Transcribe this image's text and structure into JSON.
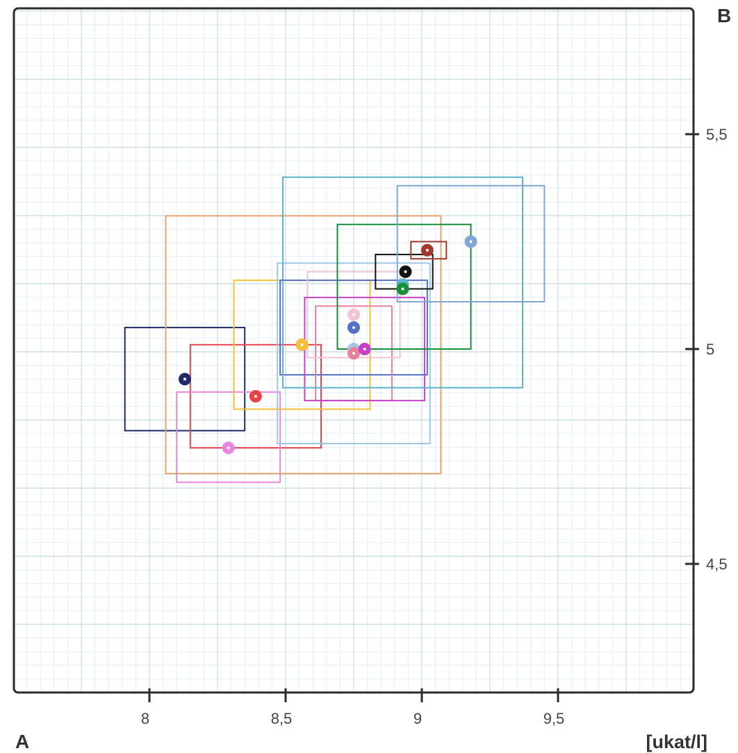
{
  "chart_data": {
    "type": "scatter",
    "title": "",
    "corner_label_x": "A",
    "corner_label_y": "B",
    "xlabel": "[ukat/l]",
    "ylabel": "",
    "xlim": [
      7.5,
      10.0
    ],
    "ylim": [
      4.0,
      5.75
    ],
    "grid": true,
    "x_ticks": [
      {
        "value": 8.0,
        "label": "8"
      },
      {
        "value": 8.5,
        "label": "8,5"
      },
      {
        "value": 9.0,
        "label": "9"
      },
      {
        "value": 9.5,
        "label": "9,5"
      }
    ],
    "y_ticks": [
      {
        "value": 4.5,
        "label": "4,5"
      },
      {
        "value": 5.0,
        "label": "5"
      },
      {
        "value": 5.5,
        "label": "5,5"
      }
    ],
    "series": [
      {
        "color": "#1f2a6b",
        "x": 8.13,
        "y": 4.93,
        "x_range": [
          7.91,
          8.35
        ],
        "y_range": [
          4.81,
          5.05
        ]
      },
      {
        "color": "#e8a36c",
        "x": 8.56,
        "y": 5.01,
        "x_range": [
          8.06,
          9.07
        ],
        "y_range": [
          4.71,
          5.31
        ]
      },
      {
        "color": "#e8424a",
        "x": 8.39,
        "y": 4.89,
        "x_range": [
          8.15,
          8.63
        ],
        "y_range": [
          4.77,
          5.01
        ]
      },
      {
        "color": "#e887dd",
        "x": 8.29,
        "y": 4.77,
        "x_range": [
          8.1,
          8.48
        ],
        "y_range": [
          4.69,
          4.9
        ]
      },
      {
        "color": "#f3c03a",
        "x": 8.56,
        "y": 5.01,
        "x_range": [
          8.31,
          8.81
        ],
        "y_range": [
          4.86,
          5.16
        ]
      },
      {
        "color": "#9ec7e3",
        "x": 8.75,
        "y": 5.0,
        "x_range": [
          8.47,
          9.03
        ],
        "y_range": [
          4.78,
          5.2
        ]
      },
      {
        "color": "#5470c6",
        "x": 8.75,
        "y": 5.05,
        "x_range": [
          8.48,
          9.02
        ],
        "y_range": [
          4.94,
          5.16
        ]
      },
      {
        "color": "#e8819a",
        "x": 8.75,
        "y": 4.99,
        "x_range": [
          8.61,
          8.89
        ],
        "y_range": [
          4.88,
          5.1
        ]
      },
      {
        "color": "#f2c4d6",
        "x": 8.75,
        "y": 5.08,
        "x_range": [
          8.58,
          8.92
        ],
        "y_range": [
          4.98,
          5.18
        ]
      },
      {
        "color": "#c840c8",
        "x": 8.79,
        "y": 5.0,
        "x_range": [
          8.57,
          9.01
        ],
        "y_range": [
          4.88,
          5.12
        ]
      },
      {
        "color": "#5bb3c9",
        "x": 8.93,
        "y": 5.15,
        "x_range": [
          8.49,
          9.37
        ],
        "y_range": [
          4.91,
          5.4
        ]
      },
      {
        "color": "#18903a",
        "x": 8.93,
        "y": 5.14,
        "x_range": [
          8.69,
          9.18
        ],
        "y_range": [
          5.0,
          5.29
        ]
      },
      {
        "color": "#111111",
        "x": 8.94,
        "y": 5.18,
        "x_range": [
          8.83,
          9.04
        ],
        "y_range": [
          5.14,
          5.22
        ]
      },
      {
        "color": "#a0392a",
        "x": 9.02,
        "y": 5.23,
        "x_range": [
          8.96,
          9.09
        ],
        "y_range": [
          5.21,
          5.25
        ]
      },
      {
        "color": "#7fa6d4",
        "x": 9.18,
        "y": 5.25,
        "x_range": [
          8.91,
          9.45
        ],
        "y_range": [
          5.11,
          5.38
        ]
      }
    ]
  }
}
